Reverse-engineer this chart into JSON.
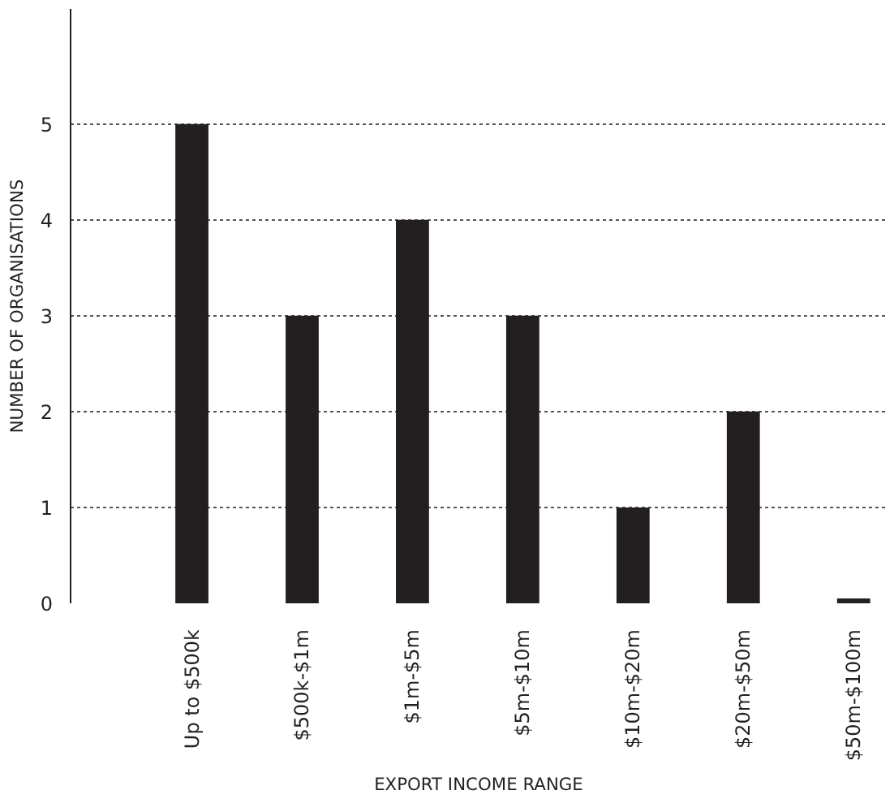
{
  "chart_data": {
    "type": "bar",
    "xlabel": "EXPORT INCOME RANGE",
    "ylabel": "NUMBER OF ORGANISATIONS",
    "categories": [
      "Up to $500k",
      "$500k-$1m",
      "$1m-$5m",
      "$5m-$10m",
      "$10m-$20m",
      "$20m-$50m",
      "$50m-$100m"
    ],
    "values": [
      5,
      3,
      4,
      3,
      1,
      2,
      0.05
    ],
    "color": "#231f20",
    "ylim": [
      0,
      6.2
    ],
    "yticks": [
      0,
      1,
      2,
      3,
      4,
      5
    ],
    "grid": "y"
  }
}
